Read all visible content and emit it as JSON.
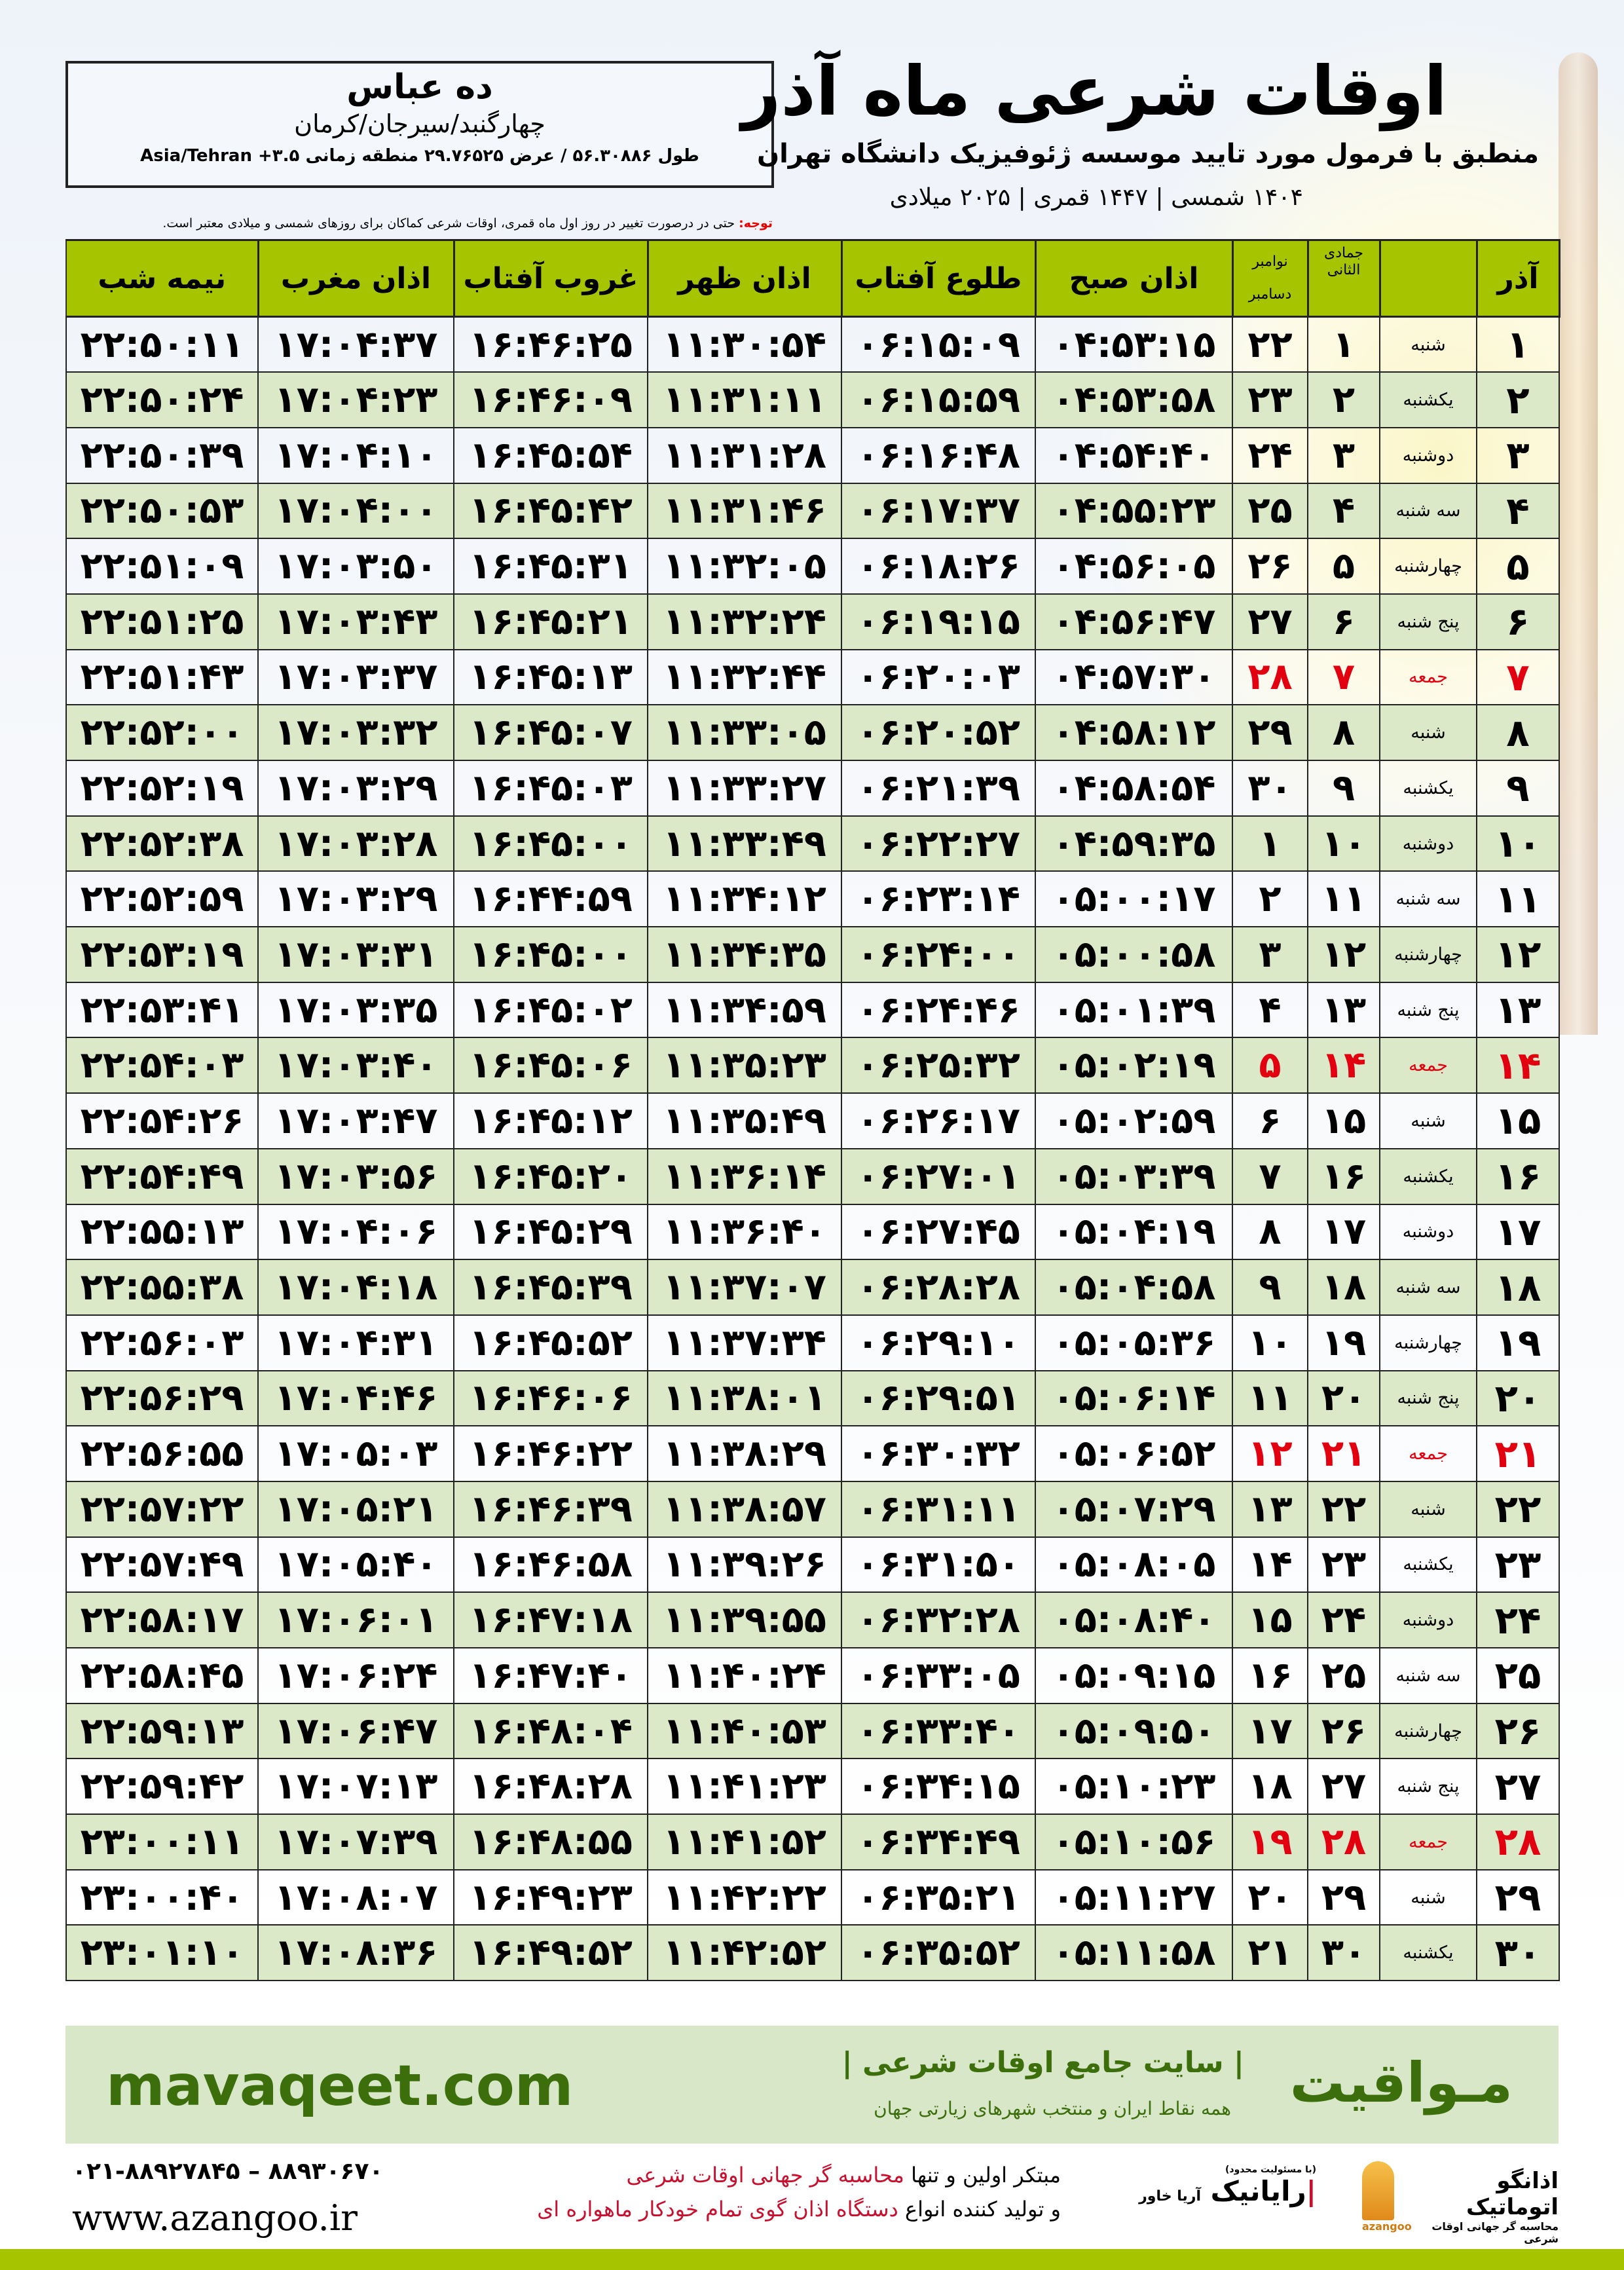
{
  "location": {
    "city": "ده عباس",
    "region": "چهارگنبد/سیرجان/کرمان",
    "coords": "طول ۵۶.۳۰۸۸۶ / عرض ۲۹.۷۶۵۲۵ منطقه زمانی ۳.۵+ Asia/Tehran"
  },
  "header": {
    "title": "اوقات شرعی ماه آذر",
    "subtitle": "منطبق با فرمول مورد تایید موسسه ژئوفیزیک دانشگاه تهران",
    "years": "۱۴۰۴ شمسی | ۱۴۴۷ قمری | ۲۰۲۵ میلادی"
  },
  "note": {
    "label": "توجه:",
    "text": " حتی در درصورت تغییر در روز اول ماه قمری، اوقات شرعی کماکان برای روزهای شمسی و میلادی معتبر است."
  },
  "table": {
    "columns": {
      "azar": "آذر",
      "hijri": "جمادی الثانی",
      "greg_top": "نوامبر",
      "greg_bottom": "دسامبر",
      "sobh": "اذان صبح",
      "tolu": "طلوع آفتاب",
      "zohr": "اذان ظهر",
      "ghorub": "غروب آفتاب",
      "maghreb": "اذان مغرب",
      "nime": "نیمه شب"
    },
    "highlight_color": "#e20010",
    "rows": [
      [
        "۱",
        "شنبه",
        "۱",
        "۲۲",
        "۰۴:۵۳:۱۵",
        "۰۶:۱۵:۰۹",
        "۱۱:۳۰:۵۴",
        "۱۶:۴۶:۲۵",
        "۱۷:۰۴:۳۷",
        "۲۲:۵۰:۱۱"
      ],
      [
        "۲",
        "یکشنبه",
        "۲",
        "۲۳",
        "۰۴:۵۳:۵۸",
        "۰۶:۱۵:۵۹",
        "۱۱:۳۱:۱۱",
        "۱۶:۴۶:۰۹",
        "۱۷:۰۴:۲۳",
        "۲۲:۵۰:۲۴"
      ],
      [
        "۳",
        "دوشنبه",
        "۳",
        "۲۴",
        "۰۴:۵۴:۴۰",
        "۰۶:۱۶:۴۸",
        "۱۱:۳۱:۲۸",
        "۱۶:۴۵:۵۴",
        "۱۷:۰۴:۱۰",
        "۲۲:۵۰:۳۹"
      ],
      [
        "۴",
        "سه شنبه",
        "۴",
        "۲۵",
        "۰۴:۵۵:۲۳",
        "۰۶:۱۷:۳۷",
        "۱۱:۳۱:۴۶",
        "۱۶:۴۵:۴۲",
        "۱۷:۰۴:۰۰",
        "۲۲:۵۰:۵۳"
      ],
      [
        "۵",
        "چهارشنبه",
        "۵",
        "۲۶",
        "۰۴:۵۶:۰۵",
        "۰۶:۱۸:۲۶",
        "۱۱:۳۲:۰۵",
        "۱۶:۴۵:۳۱",
        "۱۷:۰۳:۵۰",
        "۲۲:۵۱:۰۹"
      ],
      [
        "۶",
        "پنج شنبه",
        "۶",
        "۲۷",
        "۰۴:۵۶:۴۷",
        "۰۶:۱۹:۱۵",
        "۱۱:۳۲:۲۴",
        "۱۶:۴۵:۲۱",
        "۱۷:۰۳:۴۳",
        "۲۲:۵۱:۲۵"
      ],
      [
        "۷",
        "جمعه",
        "۷",
        "۲۸",
        "۰۴:۵۷:۳۰",
        "۰۶:۲۰:۰۳",
        "۱۱:۳۲:۴۴",
        "۱۶:۴۵:۱۳",
        "۱۷:۰۳:۳۷",
        "۲۲:۵۱:۴۳"
      ],
      [
        "۸",
        "شنبه",
        "۸",
        "۲۹",
        "۰۴:۵۸:۱۲",
        "۰۶:۲۰:۵۲",
        "۱۱:۳۳:۰۵",
        "۱۶:۴۵:۰۷",
        "۱۷:۰۳:۳۲",
        "۲۲:۵۲:۰۰"
      ],
      [
        "۹",
        "یکشنبه",
        "۹",
        "۳۰",
        "۰۴:۵۸:۵۴",
        "۰۶:۲۱:۳۹",
        "۱۱:۳۳:۲۷",
        "۱۶:۴۵:۰۳",
        "۱۷:۰۳:۲۹",
        "۲۲:۵۲:۱۹"
      ],
      [
        "۱۰",
        "دوشنبه",
        "۱۰",
        "۱",
        "۰۴:۵۹:۳۵",
        "۰۶:۲۲:۲۷",
        "۱۱:۳۳:۴۹",
        "۱۶:۴۵:۰۰",
        "۱۷:۰۳:۲۸",
        "۲۲:۵۲:۳۸"
      ],
      [
        "۱۱",
        "سه شنبه",
        "۱۱",
        "۲",
        "۰۵:۰۰:۱۷",
        "۰۶:۲۳:۱۴",
        "۱۱:۳۴:۱۲",
        "۱۶:۴۴:۵۹",
        "۱۷:۰۳:۲۹",
        "۲۲:۵۲:۵۹"
      ],
      [
        "۱۲",
        "چهارشنبه",
        "۱۲",
        "۳",
        "۰۵:۰۰:۵۸",
        "۰۶:۲۴:۰۰",
        "۱۱:۳۴:۳۵",
        "۱۶:۴۵:۰۰",
        "۱۷:۰۳:۳۱",
        "۲۲:۵۳:۱۹"
      ],
      [
        "۱۳",
        "پنج شنبه",
        "۱۳",
        "۴",
        "۰۵:۰۱:۳۹",
        "۰۶:۲۴:۴۶",
        "۱۱:۳۴:۵۹",
        "۱۶:۴۵:۰۲",
        "۱۷:۰۳:۳۵",
        "۲۲:۵۳:۴۱"
      ],
      [
        "۱۴",
        "جمعه",
        "۱۴",
        "۵",
        "۰۵:۰۲:۱۹",
        "۰۶:۲۵:۳۲",
        "۱۱:۳۵:۲۳",
        "۱۶:۴۵:۰۶",
        "۱۷:۰۳:۴۰",
        "۲۲:۵۴:۰۳"
      ],
      [
        "۱۵",
        "شنبه",
        "۱۵",
        "۶",
        "۰۵:۰۲:۵۹",
        "۰۶:۲۶:۱۷",
        "۱۱:۳۵:۴۹",
        "۱۶:۴۵:۱۲",
        "۱۷:۰۳:۴۷",
        "۲۲:۵۴:۲۶"
      ],
      [
        "۱۶",
        "یکشنبه",
        "۱۶",
        "۷",
        "۰۵:۰۳:۳۹",
        "۰۶:۲۷:۰۱",
        "۱۱:۳۶:۱۴",
        "۱۶:۴۵:۲۰",
        "۱۷:۰۳:۵۶",
        "۲۲:۵۴:۴۹"
      ],
      [
        "۱۷",
        "دوشنبه",
        "۱۷",
        "۸",
        "۰۵:۰۴:۱۹",
        "۰۶:۲۷:۴۵",
        "۱۱:۳۶:۴۰",
        "۱۶:۴۵:۲۹",
        "۱۷:۰۴:۰۶",
        "۲۲:۵۵:۱۳"
      ],
      [
        "۱۸",
        "سه شنبه",
        "۱۸",
        "۹",
        "۰۵:۰۴:۵۸",
        "۰۶:۲۸:۲۸",
        "۱۱:۳۷:۰۷",
        "۱۶:۴۵:۳۹",
        "۱۷:۰۴:۱۸",
        "۲۲:۵۵:۳۸"
      ],
      [
        "۱۹",
        "چهارشنبه",
        "۱۹",
        "۱۰",
        "۰۵:۰۵:۳۶",
        "۰۶:۲۹:۱۰",
        "۱۱:۳۷:۳۴",
        "۱۶:۴۵:۵۲",
        "۱۷:۰۴:۳۱",
        "۲۲:۵۶:۰۳"
      ],
      [
        "۲۰",
        "پنج شنبه",
        "۲۰",
        "۱۱",
        "۰۵:۰۶:۱۴",
        "۰۶:۲۹:۵۱",
        "۱۱:۳۸:۰۱",
        "۱۶:۴۶:۰۶",
        "۱۷:۰۴:۴۶",
        "۲۲:۵۶:۲۹"
      ],
      [
        "۲۱",
        "جمعه",
        "۲۱",
        "۱۲",
        "۰۵:۰۶:۵۲",
        "۰۶:۳۰:۳۲",
        "۱۱:۳۸:۲۹",
        "۱۶:۴۶:۲۲",
        "۱۷:۰۵:۰۳",
        "۲۲:۵۶:۵۵"
      ],
      [
        "۲۲",
        "شنبه",
        "۲۲",
        "۱۳",
        "۰۵:۰۷:۲۹",
        "۰۶:۳۱:۱۱",
        "۱۱:۳۸:۵۷",
        "۱۶:۴۶:۳۹",
        "۱۷:۰۵:۲۱",
        "۲۲:۵۷:۲۲"
      ],
      [
        "۲۳",
        "یکشنبه",
        "۲۳",
        "۱۴",
        "۰۵:۰۸:۰۵",
        "۰۶:۳۱:۵۰",
        "۱۱:۳۹:۲۶",
        "۱۶:۴۶:۵۸",
        "۱۷:۰۵:۴۰",
        "۲۲:۵۷:۴۹"
      ],
      [
        "۲۴",
        "دوشنبه",
        "۲۴",
        "۱۵",
        "۰۵:۰۸:۴۰",
        "۰۶:۳۲:۲۸",
        "۱۱:۳۹:۵۵",
        "۱۶:۴۷:۱۸",
        "۱۷:۰۶:۰۱",
        "۲۲:۵۸:۱۷"
      ],
      [
        "۲۵",
        "سه شنبه",
        "۲۵",
        "۱۶",
        "۰۵:۰۹:۱۵",
        "۰۶:۳۳:۰۵",
        "۱۱:۴۰:۲۴",
        "۱۶:۴۷:۴۰",
        "۱۷:۰۶:۲۴",
        "۲۲:۵۸:۴۵"
      ],
      [
        "۲۶",
        "چهارشنبه",
        "۲۶",
        "۱۷",
        "۰۵:۰۹:۵۰",
        "۰۶:۳۳:۴۰",
        "۱۱:۴۰:۵۳",
        "۱۶:۴۸:۰۴",
        "۱۷:۰۶:۴۷",
        "۲۲:۵۹:۱۳"
      ],
      [
        "۲۷",
        "پنج شنبه",
        "۲۷",
        "۱۸",
        "۰۵:۱۰:۲۳",
        "۰۶:۳۴:۱۵",
        "۱۱:۴۱:۲۳",
        "۱۶:۴۸:۲۸",
        "۱۷:۰۷:۱۳",
        "۲۲:۵۹:۴۲"
      ],
      [
        "۲۸",
        "جمعه",
        "۲۸",
        "۱۹",
        "۰۵:۱۰:۵۶",
        "۰۶:۳۴:۴۹",
        "۱۱:۴۱:۵۲",
        "۱۶:۴۸:۵۵",
        "۱۷:۰۷:۳۹",
        "۲۳:۰۰:۱۱"
      ],
      [
        "۲۹",
        "شنبه",
        "۲۹",
        "۲۰",
        "۰۵:۱۱:۲۷",
        "۰۶:۳۵:۲۱",
        "۱۱:۴۲:۲۲",
        "۱۶:۴۹:۲۳",
        "۱۷:۰۸:۰۷",
        "۲۳:۰۰:۴۰"
      ],
      [
        "۳۰",
        "یکشنبه",
        "۳۰",
        "۲۱",
        "۰۵:۱۱:۵۸",
        "۰۶:۳۵:۵۲",
        "۱۱:۴۲:۵۲",
        "۱۶:۴۹:۵۲",
        "۱۷:۰۸:۳۶",
        "۲۳:۰۱:۱۰"
      ]
    ],
    "highlighted_rows": [
      7,
      14,
      21,
      28
    ]
  },
  "footer": {
    "brand": "مـواقیت",
    "tagline": "سایت جامع اوقات شرعی",
    "tagline_sub": "همه نقاط ایران و منتخب شهرهای زیارتی جهان",
    "site": "mavaqeet.com",
    "phone": "۰۲۱-۸۸۹۲۷۸۴۵ – ۸۸۹۳۰۶۷۰",
    "web": "www.azangoo.ir",
    "promo_1a": "مبتکر اولین و تنها ",
    "promo_1b": "محاسبه گر جهانی اوقات شرعی",
    "promo_2a": "و تولید کننده انواع ",
    "promo_2b": "دستگاه اذان گوی تمام خودکار ماهواره ای",
    "logo_azangoo": "اذانگو اتوماتیک",
    "logo_azangoo_sub": "محاسبه گر جهانی اوقات شرعی",
    "logo_azangoo_en": "azangoo",
    "logo_rayanik": "رایانیک",
    "logo_rayanik_sub": "آریا خاور",
    "logo_rayanik_note": "(با مسئولیت محدود)",
    "accent": "#3c6e0c",
    "bar_color": "#a6c400"
  }
}
